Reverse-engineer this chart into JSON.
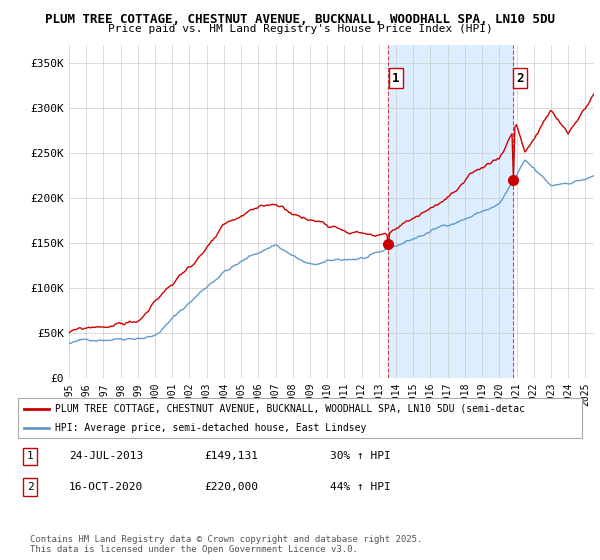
{
  "title1": "PLUM TREE COTTAGE, CHESTNUT AVENUE, BUCKNALL, WOODHALL SPA, LN10 5DU",
  "title2": "Price paid vs. HM Land Registry's House Price Index (HPI)",
  "ylabel_ticks": [
    "£0",
    "£50K",
    "£100K",
    "£150K",
    "£200K",
    "£250K",
    "£300K",
    "£350K"
  ],
  "ytick_values": [
    0,
    50000,
    100000,
    150000,
    200000,
    250000,
    300000,
    350000
  ],
  "ylim": [
    0,
    370000
  ],
  "xlim_start": 1995.0,
  "xlim_end": 2025.5,
  "xticks": [
    1995,
    1996,
    1997,
    1998,
    1999,
    2000,
    2001,
    2002,
    2003,
    2004,
    2005,
    2006,
    2007,
    2008,
    2009,
    2010,
    2011,
    2012,
    2013,
    2014,
    2015,
    2016,
    2017,
    2018,
    2019,
    2020,
    2021,
    2022,
    2023,
    2024,
    2025
  ],
  "red_color": "#cc0000",
  "blue_color": "#6699cc",
  "shade_color": "#ddeeff",
  "marker1_x": 2013.56,
  "marker1_y": 149131,
  "marker1_label": "1",
  "marker2_x": 2020.79,
  "marker2_y": 220000,
  "marker2_label": "2",
  "legend_line1": "PLUM TREE COTTAGE, CHESTNUT AVENUE, BUCKNALL, WOODHALL SPA, LN10 5DU (semi-detac",
  "legend_line2": "HPI: Average price, semi-detached house, East Lindsey",
  "annotation1_num": "1",
  "annotation1_date": "24-JUL-2013",
  "annotation1_price": "£149,131",
  "annotation1_hpi": "30% ↑ HPI",
  "annotation2_num": "2",
  "annotation2_date": "16-OCT-2020",
  "annotation2_price": "£220,000",
  "annotation2_hpi": "44% ↑ HPI",
  "footer": "Contains HM Land Registry data © Crown copyright and database right 2025.\nThis data is licensed under the Open Government Licence v3.0.",
  "background_color": "#ffffff",
  "grid_color": "#cccccc"
}
